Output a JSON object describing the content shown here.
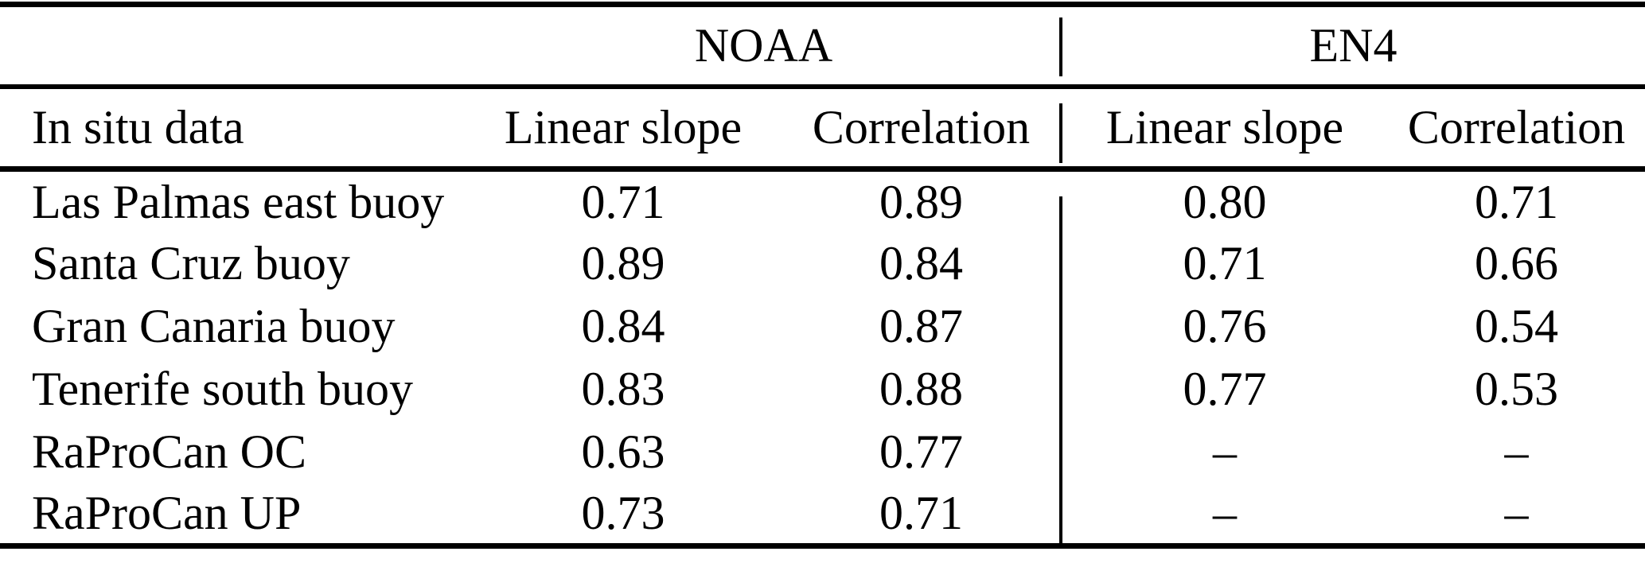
{
  "colors": {
    "background": "#ffffff",
    "text": "#000000",
    "rule": "#000000"
  },
  "table": {
    "groups": [
      {
        "label": "NOAA"
      },
      {
        "label": "EN4"
      }
    ],
    "row_header_label": "In situ data",
    "sub_headers": {
      "slope": "Linear slope",
      "correlation": "Correlation"
    },
    "rows": [
      {
        "name": "Las Palmas east buoy",
        "values": [
          "0.71",
          "0.89",
          "0.80",
          "0.71"
        ]
      },
      {
        "name": "Santa Cruz buoy",
        "values": [
          "0.89",
          "0.84",
          "0.71",
          "0.66"
        ]
      },
      {
        "name": "Gran Canaria buoy",
        "values": [
          "0.84",
          "0.87",
          "0.76",
          "0.54"
        ]
      },
      {
        "name": "Tenerife south buoy",
        "values": [
          "0.83",
          "0.88",
          "0.77",
          "0.53"
        ]
      },
      {
        "name": "RaProCan OC",
        "values": [
          "0.63",
          "0.77",
          "–",
          "–"
        ]
      },
      {
        "name": "RaProCan UP",
        "values": [
          "0.73",
          "0.71",
          "–",
          "–"
        ]
      }
    ]
  }
}
